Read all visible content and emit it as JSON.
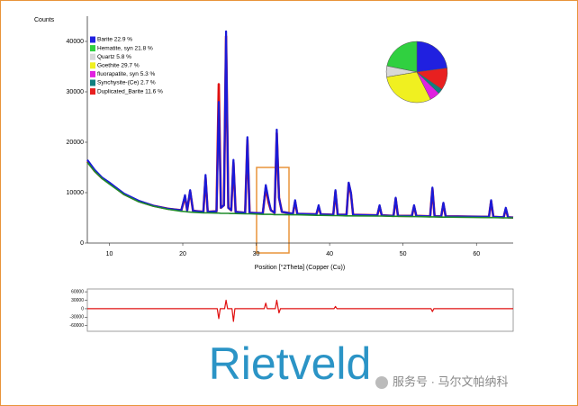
{
  "chart_data": [
    {
      "type": "line",
      "ylabel": "Counts",
      "xlabel": "Position [°2Theta] (Copper (Cu))",
      "xlim": [
        7,
        65
      ],
      "ylim": [
        0,
        45000
      ],
      "xticks": [
        10,
        20,
        30,
        40,
        50,
        60
      ],
      "yticks": [
        0,
        10000,
        20000,
        30000,
        40000
      ],
      "x": [
        7,
        8,
        9,
        10,
        12,
        14,
        16,
        18,
        19.8,
        20.3,
        20.6,
        21,
        21.4,
        22.8,
        23.1,
        23.4,
        24.6,
        24.9,
        25.2,
        25.6,
        25.9,
        26.2,
        26.6,
        26.9,
        27.2,
        28.5,
        28.8,
        29.1,
        30.9,
        31.3,
        31.7,
        32,
        32.5,
        32.8,
        33.1,
        33.5,
        35,
        35.3,
        35.6,
        38.2,
        38.5,
        38.8,
        40.5,
        40.8,
        41.1,
        42.3,
        42.6,
        42.9,
        43.2,
        46.5,
        46.8,
        47.1,
        48.7,
        49,
        49.3,
        51.2,
        51.5,
        51.8,
        53.7,
        54,
        54.3,
        55.2,
        55.5,
        55.8,
        61.7,
        62,
        62.3,
        63.7,
        64,
        64.3,
        65
      ],
      "series": [
        {
          "color": "#e01010",
          "values": [
            16200,
            14300,
            12900,
            11900,
            9700,
            8300,
            7400,
            6800,
            6500,
            9200,
            6500,
            10300,
            6400,
            6200,
            13000,
            6200,
            6300,
            31500,
            7000,
            7500,
            41000,
            7000,
            6500,
            16000,
            6200,
            6000,
            20500,
            6000,
            5900,
            11000,
            8000,
            6500,
            6000,
            21800,
            9000,
            6200,
            5800,
            8200,
            5800,
            5700,
            7200,
            5700,
            5600,
            10200,
            5600,
            5600,
            11800,
            9800,
            5600,
            5500,
            7300,
            5500,
            5400,
            8800,
            5400,
            5400,
            7300,
            5400,
            5300,
            10800,
            5300,
            5300,
            7800,
            5300,
            5200,
            8300,
            5200,
            5100,
            6800,
            5100,
            5050
          ]
        },
        {
          "color": "#1a1ad8",
          "values": [
            16500,
            14500,
            13000,
            12000,
            9800,
            8400,
            7400,
            6800,
            6500,
            9500,
            6500,
            10500,
            6400,
            6200,
            13500,
            6200,
            6300,
            28000,
            7000,
            7500,
            42000,
            7000,
            6500,
            16500,
            6200,
            6000,
            21000,
            6000,
            5900,
            11500,
            8500,
            6500,
            6000,
            22500,
            9000,
            6200,
            5800,
            8500,
            5800,
            5700,
            7500,
            5700,
            5600,
            10500,
            5600,
            5600,
            12000,
            10000,
            5600,
            5500,
            7500,
            5500,
            5400,
            9000,
            5400,
            5400,
            7500,
            5400,
            5300,
            11000,
            5300,
            5300,
            8000,
            5300,
            5200,
            8500,
            5200,
            5100,
            7000,
            5100,
            5050
          ]
        },
        {
          "color": "#1e8c2a",
          "values": [
            16000,
            14200,
            12800,
            11700,
            9600,
            8200,
            7300,
            6700,
            6300,
            6250,
            6200,
            6150,
            6100,
            6000,
            6000,
            6000,
            5950,
            5950,
            5900,
            5900,
            5900,
            5900,
            5850,
            5850,
            5850,
            5800,
            5800,
            5800,
            5700,
            5700,
            5700,
            5700,
            5650,
            5650,
            5650,
            5650,
            5600,
            5600,
            5600,
            5500,
            5500,
            5500,
            5450,
            5450,
            5450,
            5400,
            5400,
            5400,
            5400,
            5350,
            5350,
            5350,
            5300,
            5300,
            5300,
            5250,
            5250,
            5250,
            5200,
            5200,
            5200,
            5150,
            5150,
            5150,
            5050,
            5050,
            5050,
            5000,
            5000,
            5000,
            5000
          ]
        }
      ]
    },
    {
      "type": "pie",
      "categories": [
        "Barite 22.9 %",
        "Hematite, syn 21.8 %",
        "Quartz 5.8 %",
        "Goethite 29.7 %",
        "fluorapatite, syn 5.3 %",
        "Synchysite-(Ce) 2.7 %",
        "Duplicated_Barite 11.6 %"
      ],
      "values": [
        22.9,
        21.8,
        5.8,
        29.7,
        5.3,
        2.7,
        11.6
      ],
      "colors": [
        "#2020e0",
        "#30d040",
        "#d8d8d8",
        "#f0f020",
        "#e020e0",
        "#108080",
        "#e82020"
      ]
    },
    {
      "type": "line",
      "xlim": [
        7,
        65
      ],
      "ylim": [
        -80000,
        70000
      ],
      "yticks": [
        -60000,
        -30000,
        0,
        30000,
        60000
      ],
      "x": [
        7,
        20,
        24.7,
        24.9,
        25.1,
        25.7,
        25.9,
        26.1,
        26.7,
        26.9,
        27.1,
        31.1,
        31.3,
        31.5,
        32.6,
        32.8,
        33,
        33.1,
        33.3,
        40.6,
        40.8,
        41,
        53.8,
        54,
        54.2,
        65
      ],
      "series": [
        {
          "color": "#e01010",
          "values": [
            0,
            0,
            0,
            -35000,
            0,
            0,
            30000,
            0,
            0,
            -45000,
            0,
            0,
            20000,
            0,
            0,
            30000,
            0,
            -15000,
            0,
            0,
            8000,
            0,
            0,
            -10000,
            0,
            0
          ]
        }
      ]
    },
    {
      "type": "text",
      "caption": "Rietveld",
      "watermark": "服务号 · 马尔文帕纳科"
    }
  ]
}
